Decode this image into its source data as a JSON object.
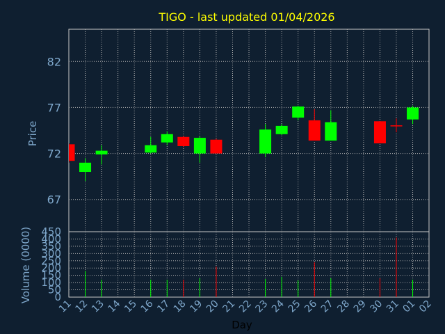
{
  "chart_data": {
    "type": "candlestick",
    "title": "TIGO - last updated 01/04/2026",
    "xlabel": "Day",
    "price_ylabel": "Price",
    "volume_ylabel": "Volume (0000)",
    "price_ylim": [
      63.5,
      85.5
    ],
    "price_ticks": [
      67,
      72,
      77,
      82
    ],
    "volume_ylim": [
      0,
      450
    ],
    "volume_ticks": [
      0,
      50,
      100,
      150,
      200,
      250,
      300,
      350,
      400,
      450
    ],
    "x_tick_labels": [
      "11",
      "12",
      "13",
      "14",
      "15",
      "16",
      "17",
      "18",
      "19",
      "20",
      "21",
      "22",
      "23",
      "24",
      "25",
      "26",
      "27",
      "28",
      "29",
      "30",
      "31",
      "01",
      "02"
    ],
    "grid": true,
    "colors": {
      "up": "#00ff00",
      "down": "#ff0000",
      "title": "#ffff00",
      "axis_text": "#7fa8cc",
      "grid": "#b0b0b0",
      "background": "#0f1f30"
    },
    "candles": [
      {
        "day": "11",
        "open": 73.0,
        "high": 73.1,
        "low": 71.0,
        "close": 71.2,
        "volume": 0
      },
      {
        "day": "12",
        "open": 70.0,
        "high": 71.5,
        "low": 69.0,
        "close": 71.0,
        "volume": 180
      },
      {
        "day": "13",
        "open": 71.9,
        "high": 72.9,
        "low": 70.8,
        "close": 72.3,
        "volume": 120
      },
      {
        "day": "16",
        "open": 72.1,
        "high": 73.8,
        "low": 72.0,
        "close": 72.9,
        "volume": 120
      },
      {
        "day": "17",
        "open": 73.2,
        "high": 74.4,
        "low": 72.9,
        "close": 74.1,
        "volume": 120
      },
      {
        "day": "18",
        "open": 73.8,
        "high": 73.9,
        "low": 72.7,
        "close": 72.8,
        "volume": 120
      },
      {
        "day": "19",
        "open": 72.0,
        "high": 73.9,
        "low": 71.0,
        "close": 73.7,
        "volume": 130
      },
      {
        "day": "20",
        "open": 73.5,
        "high": 73.6,
        "low": 72.0,
        "close": 72.0,
        "volume": 210
      },
      {
        "day": "23",
        "open": 72.0,
        "high": 75.2,
        "low": 71.6,
        "close": 74.6,
        "volume": 125
      },
      {
        "day": "24",
        "open": 74.1,
        "high": 75.2,
        "low": 74.0,
        "close": 75.0,
        "volume": 140
      },
      {
        "day": "25",
        "open": 75.9,
        "high": 77.2,
        "low": 75.6,
        "close": 77.1,
        "volume": 115
      },
      {
        "day": "26",
        "open": 75.6,
        "high": 76.8,
        "low": 73.4,
        "close": 73.4,
        "volume": 240
      },
      {
        "day": "27",
        "open": 73.4,
        "high": 76.7,
        "low": 73.4,
        "close": 75.4,
        "volume": 130
      },
      {
        "day": "30",
        "open": 75.5,
        "high": 75.5,
        "low": 73.1,
        "close": 73.1,
        "volume": 130
      },
      {
        "day": "31",
        "open": 75.0,
        "high": 75.8,
        "low": 74.3,
        "close": 75.0,
        "volume": 410
      },
      {
        "day": "01",
        "open": 75.7,
        "high": 77.2,
        "low": 75.2,
        "close": 77.0,
        "volume": 120
      }
    ]
  }
}
